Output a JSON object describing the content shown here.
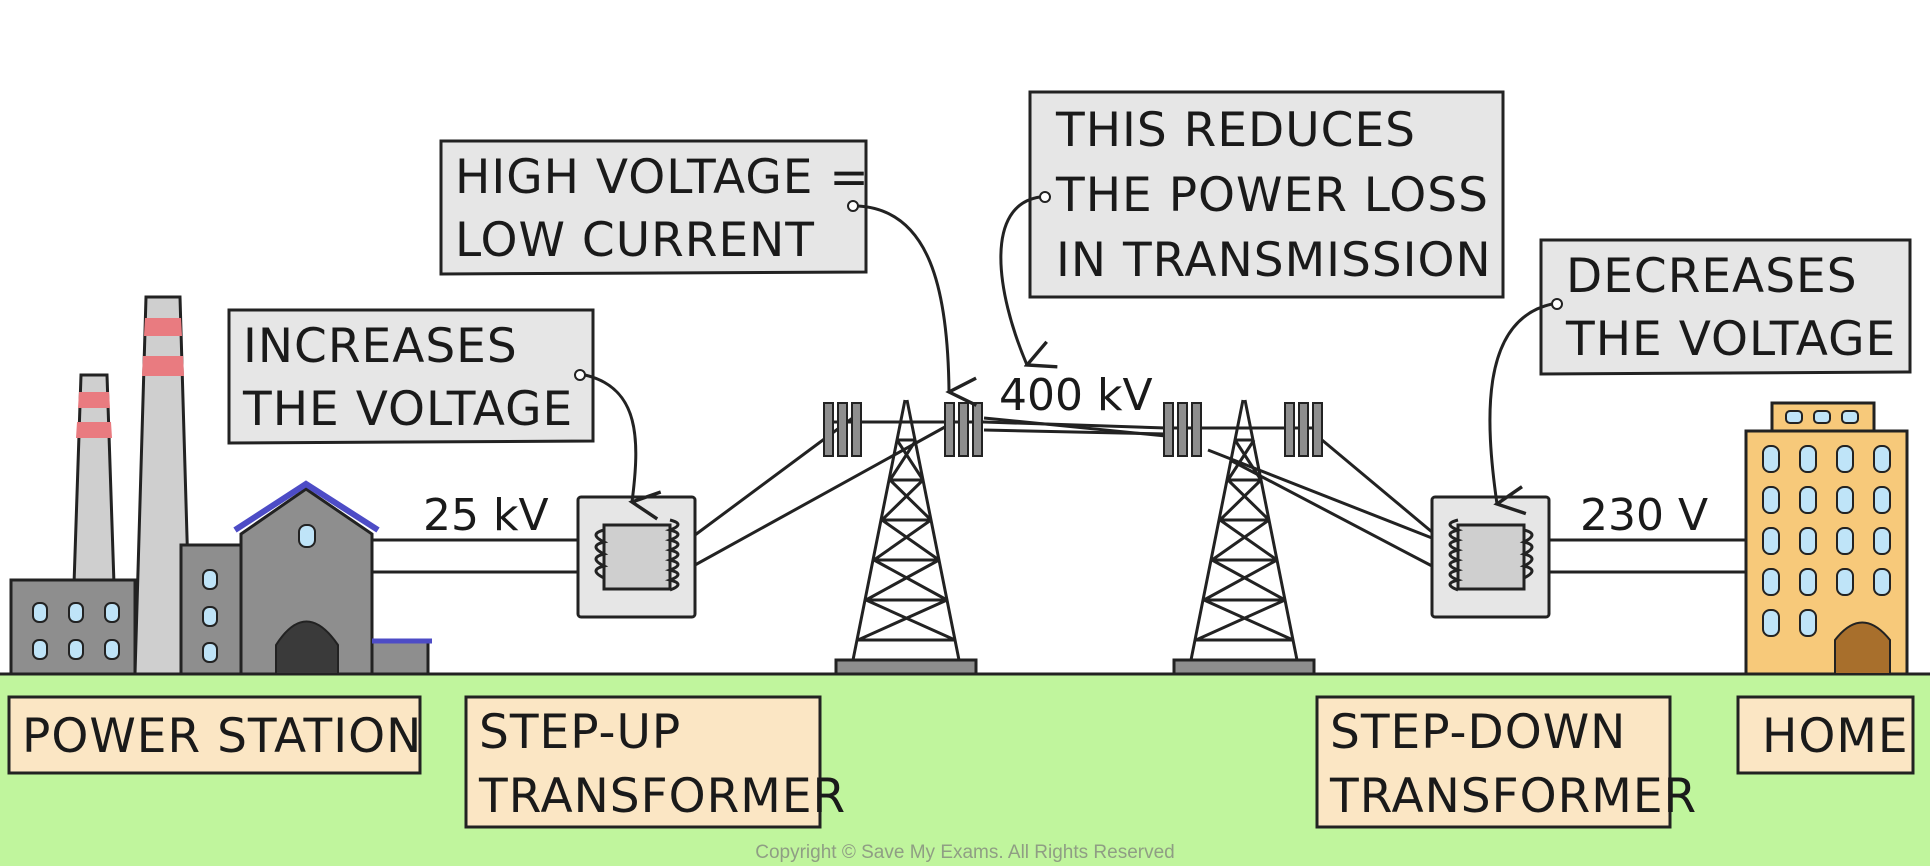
{
  "labels": {
    "power_station": "POWER STATION",
    "step_up_line1": "STEP-UP",
    "step_up_line2": "TRANSFORMER",
    "step_down_line1": "STEP-DOWN",
    "step_down_line2": "TRANSFORMER",
    "home": "HOME"
  },
  "callouts": {
    "increases_line1": "INCREASES",
    "increases_line2": "THE VOLTAGE",
    "high_voltage_line1": "HIGH VOLTAGE =",
    "high_voltage_line2": "LOW CURRENT",
    "reduces_line1": "THIS REDUCES",
    "reduces_line2": "THE POWER LOSS",
    "reduces_line3": "IN TRANSMISSION",
    "decreases_line1": "DECREASES",
    "decreases_line2": "THE VOLTAGE"
  },
  "voltages": {
    "station_output": "25 kV",
    "transmission": "400 kV",
    "home_supply": "230 V"
  },
  "copyright": "Copyright © Save My Exams. All Rights Reserved",
  "colors": {
    "ground": "#c0f59d",
    "label_box": "#fbe6c4",
    "callout_box": "#e6e6e6",
    "building_grey": "#8e8e8e",
    "chimney_grey": "#cfcfcf",
    "chimney_stripe": "#e97b80",
    "window_blue": "#bfe4f8",
    "roof_blue": "#4d4cc6",
    "home_wall": "#f7c97a",
    "home_door": "#a86f2c"
  }
}
